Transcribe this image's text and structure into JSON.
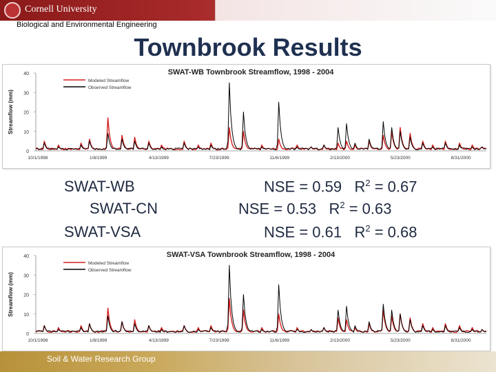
{
  "header": {
    "university": "Cornell University",
    "department": "Biological and Environmental Engineering"
  },
  "slide": {
    "title": "Townbrook Results"
  },
  "results": [
    {
      "model": "SWAT-WB",
      "nse": "NSE = 0.59",
      "r2_label": "R",
      "r2_exp": "2",
      "r2_value": " = 0.67"
    },
    {
      "model": "SWAT-CN",
      "nse": "NSE = 0.53",
      "r2_label": "R",
      "r2_exp": "2",
      "r2_value": " = 0.63"
    },
    {
      "model": "SWAT-VSA",
      "nse": "NSE = 0.61",
      "r2_label": "R",
      "r2_exp": "2",
      "r2_value": " = 0.68"
    }
  ],
  "footer": {
    "text": "Soil & Water Research Group"
  },
  "colors": {
    "modeled": "#d42020",
    "observed": "#000000",
    "title_blue": "#1f3050"
  },
  "chart_data": [
    {
      "type": "line",
      "title": "SWAT-WB Townbrook Streamflow, 1998 - 2004",
      "ylabel": "Streamflow (mm)",
      "xlabel": "",
      "ylim": [
        0,
        40
      ],
      "yticks": [
        0,
        10,
        20,
        30,
        40
      ],
      "xticks": [
        "10/1/1998",
        "1/8/1999",
        "4/13/1999",
        "7/23/1999",
        "11/6/1999",
        "2/13/2000",
        "5/23/2000",
        "8/31/2000"
      ],
      "legend": "top-left",
      "grid": false,
      "series": [
        {
          "name": "Modeled Streamflow",
          "color": "#d42020",
          "peaks": [
            [
              0.02,
              5
            ],
            [
              0.05,
              3
            ],
            [
              0.1,
              4
            ],
            [
              0.12,
              6
            ],
            [
              0.16,
              17
            ],
            [
              0.19,
              8
            ],
            [
              0.22,
              7
            ],
            [
              0.25,
              5
            ],
            [
              0.28,
              3
            ],
            [
              0.33,
              5
            ],
            [
              0.36,
              3
            ],
            [
              0.39,
              4
            ],
            [
              0.43,
              12
            ],
            [
              0.46,
              10
            ],
            [
              0.5,
              3
            ],
            [
              0.54,
              6
            ],
            [
              0.58,
              3
            ],
            [
              0.61,
              2
            ],
            [
              0.64,
              3
            ],
            [
              0.67,
              4
            ],
            [
              0.69,
              5
            ],
            [
              0.71,
              3
            ],
            [
              0.74,
              5
            ],
            [
              0.77,
              8
            ],
            [
              0.79,
              10
            ],
            [
              0.81,
              12
            ],
            [
              0.83,
              9
            ],
            [
              0.86,
              5
            ],
            [
              0.88,
              3
            ],
            [
              0.91,
              5
            ],
            [
              0.94,
              4
            ],
            [
              0.97,
              3
            ],
            [
              0.99,
              2
            ]
          ]
        },
        {
          "name": "Observed Streamflow",
          "color": "#000000",
          "peaks": [
            [
              0.02,
              4
            ],
            [
              0.05,
              2
            ],
            [
              0.1,
              3
            ],
            [
              0.12,
              5
            ],
            [
              0.16,
              9
            ],
            [
              0.19,
              6
            ],
            [
              0.22,
              5
            ],
            [
              0.25,
              4
            ],
            [
              0.28,
              2
            ],
            [
              0.33,
              4
            ],
            [
              0.36,
              2
            ],
            [
              0.39,
              3
            ],
            [
              0.43,
              35
            ],
            [
              0.46,
              20
            ],
            [
              0.5,
              2
            ],
            [
              0.54,
              25
            ],
            [
              0.58,
              2
            ],
            [
              0.61,
              2
            ],
            [
              0.64,
              3
            ],
            [
              0.67,
              12
            ],
            [
              0.69,
              14
            ],
            [
              0.71,
              4
            ],
            [
              0.74,
              6
            ],
            [
              0.77,
              15
            ],
            [
              0.79,
              12
            ],
            [
              0.81,
              10
            ],
            [
              0.83,
              7
            ],
            [
              0.86,
              4
            ],
            [
              0.88,
              2
            ],
            [
              0.91,
              4
            ],
            [
              0.94,
              3
            ],
            [
              0.97,
              2
            ],
            [
              0.99,
              2
            ]
          ]
        }
      ]
    },
    {
      "type": "line",
      "title": "SWAT-VSA Townbrook Streamflow, 1998 - 2004",
      "ylabel": "Streamflow (mm)",
      "xlabel": "",
      "ylim": [
        0,
        40
      ],
      "yticks": [
        0,
        10,
        20,
        30,
        40
      ],
      "xticks": [
        "10/1/1998",
        "1/8/1999",
        "4/13/1999",
        "7/23/1999",
        "11/6/1999",
        "2/13/2000",
        "5/23/2000",
        "8/31/2000"
      ],
      "legend": "top-left",
      "grid": false,
      "series": [
        {
          "name": "Modeled Streamflow",
          "color": "#d42020",
          "peaks": [
            [
              0.02,
              4
            ],
            [
              0.05,
              3
            ],
            [
              0.1,
              4
            ],
            [
              0.12,
              5
            ],
            [
              0.16,
              13
            ],
            [
              0.19,
              6
            ],
            [
              0.22,
              7
            ],
            [
              0.25,
              4
            ],
            [
              0.28,
              3
            ],
            [
              0.33,
              4
            ],
            [
              0.36,
              3
            ],
            [
              0.39,
              4
            ],
            [
              0.43,
              18
            ],
            [
              0.46,
              12
            ],
            [
              0.5,
              3
            ],
            [
              0.54,
              10
            ],
            [
              0.58,
              3
            ],
            [
              0.61,
              2
            ],
            [
              0.64,
              3
            ],
            [
              0.67,
              8
            ],
            [
              0.69,
              7
            ],
            [
              0.71,
              3
            ],
            [
              0.74,
              5
            ],
            [
              0.77,
              12
            ],
            [
              0.79,
              9
            ],
            [
              0.81,
              10
            ],
            [
              0.83,
              8
            ],
            [
              0.86,
              5
            ],
            [
              0.88,
              3
            ],
            [
              0.91,
              5
            ],
            [
              0.94,
              4
            ],
            [
              0.97,
              3
            ],
            [
              0.99,
              2
            ]
          ]
        },
        {
          "name": "Observed Streamflow",
          "color": "#000000",
          "peaks": [
            [
              0.02,
              4
            ],
            [
              0.05,
              2
            ],
            [
              0.1,
              3
            ],
            [
              0.12,
              5
            ],
            [
              0.16,
              9
            ],
            [
              0.19,
              6
            ],
            [
              0.22,
              5
            ],
            [
              0.25,
              4
            ],
            [
              0.28,
              2
            ],
            [
              0.33,
              4
            ],
            [
              0.36,
              2
            ],
            [
              0.39,
              3
            ],
            [
              0.43,
              35
            ],
            [
              0.46,
              20
            ],
            [
              0.5,
              2
            ],
            [
              0.54,
              25
            ],
            [
              0.58,
              2
            ],
            [
              0.61,
              2
            ],
            [
              0.64,
              3
            ],
            [
              0.67,
              12
            ],
            [
              0.69,
              14
            ],
            [
              0.71,
              4
            ],
            [
              0.74,
              6
            ],
            [
              0.77,
              15
            ],
            [
              0.79,
              12
            ],
            [
              0.81,
              10
            ],
            [
              0.83,
              7
            ],
            [
              0.86,
              4
            ],
            [
              0.88,
              2
            ],
            [
              0.91,
              4
            ],
            [
              0.94,
              3
            ],
            [
              0.97,
              2
            ],
            [
              0.99,
              2
            ]
          ]
        }
      ]
    }
  ]
}
